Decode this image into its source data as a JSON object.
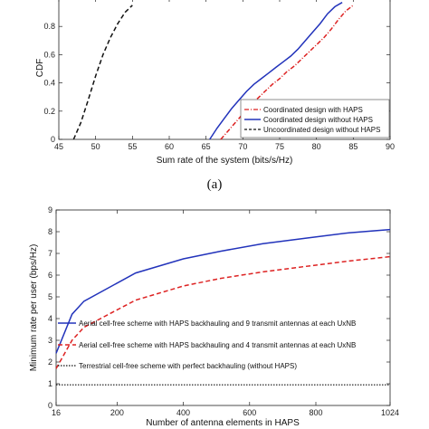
{
  "chart_data": [
    {
      "type": "line",
      "panel": "(a)",
      "xlabel": "Sum rate of the system (bits/s/Hz)",
      "ylabel": "CDF",
      "xlim": [
        45,
        90
      ],
      "ylim": [
        0,
        1
      ],
      "xticks": [
        45,
        50,
        55,
        60,
        65,
        70,
        75,
        80,
        85,
        90
      ],
      "yticks": [
        0,
        0.2,
        0.4,
        0.6,
        0.8
      ],
      "grid": false,
      "legend_position": "bottom-right",
      "series": [
        {
          "name": "Coordinated design with HAPS",
          "color": "#dd2222",
          "style": "dashdot",
          "x": [
            67.0,
            68.0,
            69.0,
            70.0,
            71.0,
            72.0,
            73.0,
            74.0,
            75.0,
            76.0,
            77.0,
            78.0,
            79.0,
            80.0,
            81.0,
            82.0,
            83.0,
            84.0,
            85.0
          ],
          "y": [
            0.0,
            0.06,
            0.12,
            0.18,
            0.24,
            0.29,
            0.34,
            0.39,
            0.43,
            0.48,
            0.52,
            0.57,
            0.62,
            0.67,
            0.72,
            0.78,
            0.85,
            0.91,
            0.95
          ]
        },
        {
          "name": "Coordinated design without HAPS",
          "color": "#2233bb",
          "style": "solid",
          "x": [
            65.5,
            66.5,
            67.5,
            68.5,
            69.5,
            70.5,
            71.5,
            72.5,
            73.5,
            74.5,
            75.5,
            76.5,
            77.5,
            78.5,
            79.5,
            80.5,
            81.5,
            82.5,
            83.5
          ],
          "y": [
            0.0,
            0.08,
            0.15,
            0.22,
            0.28,
            0.34,
            0.39,
            0.43,
            0.47,
            0.51,
            0.55,
            0.59,
            0.64,
            0.7,
            0.76,
            0.82,
            0.89,
            0.94,
            0.97
          ]
        },
        {
          "name": "Uncoordinated design without HAPS",
          "color": "#111111",
          "style": "dashed",
          "x": [
            47.0,
            48.0,
            49.0,
            50.0,
            51.0,
            52.0,
            53.0,
            54.0,
            55.0
          ],
          "y": [
            0.0,
            0.12,
            0.28,
            0.45,
            0.6,
            0.72,
            0.82,
            0.9,
            0.95
          ]
        }
      ]
    },
    {
      "type": "line",
      "xlabel": "Number of antenna elements in HAPS",
      "ylabel": "Minimum rate per user (bps/Hz)",
      "xlim": [
        16,
        1024
      ],
      "ylim": [
        0,
        9
      ],
      "xticks": [
        16,
        200,
        400,
        600,
        800,
        1024
      ],
      "yticks": [
        0,
        1,
        2,
        3,
        4,
        5,
        6,
        7,
        8,
        9
      ],
      "grid": false,
      "legend_position": "middle",
      "series": [
        {
          "name": "Aerial cell-free scheme with HAPS backhauling and 9 transmit antennas at each UxNB",
          "color": "#2233bb",
          "style": "solid",
          "x": [
            16,
            64,
            100,
            256,
            400,
            512,
            640,
            768,
            900,
            1024
          ],
          "y": [
            2.4,
            4.2,
            4.8,
            6.1,
            6.75,
            7.1,
            7.45,
            7.7,
            7.95,
            8.1
          ]
        },
        {
          "name": "Aerial cell-free scheme with HAPS backhauling and 4 transmit antennas at each UxNB",
          "color": "#dd2222",
          "style": "dashed",
          "x": [
            16,
            64,
            100,
            256,
            400,
            512,
            640,
            768,
            900,
            1024
          ],
          "y": [
            1.7,
            3.0,
            3.6,
            4.85,
            5.5,
            5.85,
            6.15,
            6.4,
            6.65,
            6.85
          ]
        },
        {
          "name": "Terrestrial cell-free scheme with perfect backhauling (without HAPS)",
          "color": "#111111",
          "style": "dotted",
          "x": [
            16,
            1024
          ],
          "y": [
            0.95,
            0.95
          ]
        }
      ]
    }
  ],
  "caption_a": "(a)"
}
